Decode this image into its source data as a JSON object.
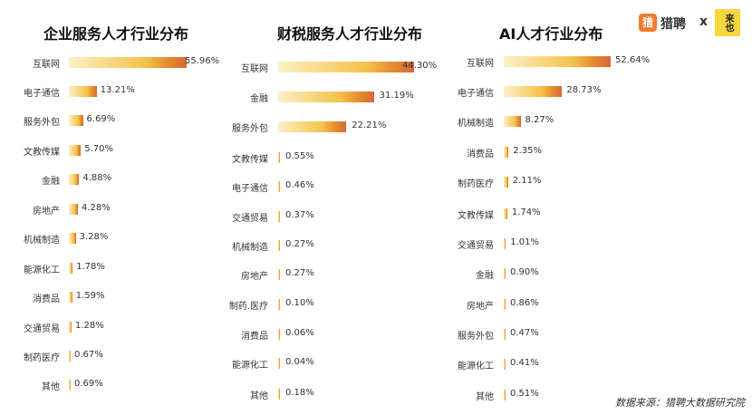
{
  "logo": {
    "mark": "猎",
    "name": "猎聘",
    "x": "x",
    "partner": "来也"
  },
  "source": "数据来源：猎聘大数据研究院",
  "chart_data": [
    {
      "type": "bar",
      "title": "企业服务人才行业分布",
      "categories": [
        "互联网",
        "电子通信",
        "服务外包",
        "文教传媒",
        "金融",
        "房地产",
        "机械制造",
        "能源化工",
        "消费品",
        "交通贸易",
        "制药医疗",
        "其他"
      ],
      "values": [
        55.96,
        13.21,
        6.69,
        5.7,
        4.88,
        4.28,
        3.28,
        1.78,
        1.59,
        1.28,
        0.67,
        0.69
      ],
      "labels": [
        "55.96%",
        "13.21%",
        "6.69%",
        "5.70%",
        "4.88%",
        "4.28%",
        "3.28%",
        "1.78%",
        "1.59%",
        "1.28%",
        "0.67%",
        "0.69%"
      ]
    },
    {
      "type": "bar",
      "title": "财税服务人才行业分布",
      "categories": [
        "互联网",
        "金融",
        "服务外包",
        "文教传媒",
        "电子通信",
        "交通贸易",
        "机械制造",
        "房地产",
        "制药.医疗",
        "消费品",
        "能源化工",
        "其他"
      ],
      "values": [
        44.3,
        31.19,
        22.21,
        0.55,
        0.46,
        0.37,
        0.27,
        0.27,
        0.1,
        0.06,
        0.04,
        0.18
      ],
      "labels": [
        "44.30%",
        "31.19%",
        "22.21%",
        "0.55%",
        "0.46%",
        "0.37%",
        "0.27%",
        "0.27%",
        "0.10%",
        "0.06%",
        "0.04%",
        "0.18%"
      ]
    },
    {
      "type": "bar",
      "title": "AI人才行业分布",
      "categories": [
        "互联网",
        "电子通信",
        "机械制造",
        "消费品",
        "制药医疗",
        "文教传媒",
        "交通贸易",
        "金融",
        "房地产",
        "服务外包",
        "能源化工",
        "其他"
      ],
      "values": [
        52.64,
        28.73,
        8.27,
        2.35,
        2.11,
        1.74,
        1.01,
        0.9,
        0.86,
        0.47,
        0.41,
        0.51
      ],
      "labels": [
        "52.64%",
        "28.73%",
        "8.27%",
        "2.35%",
        "2.11%",
        "1.74%",
        "1.01%",
        "0.90%",
        "0.86%",
        "0.47%",
        "0.41%",
        "0.51%"
      ]
    }
  ]
}
